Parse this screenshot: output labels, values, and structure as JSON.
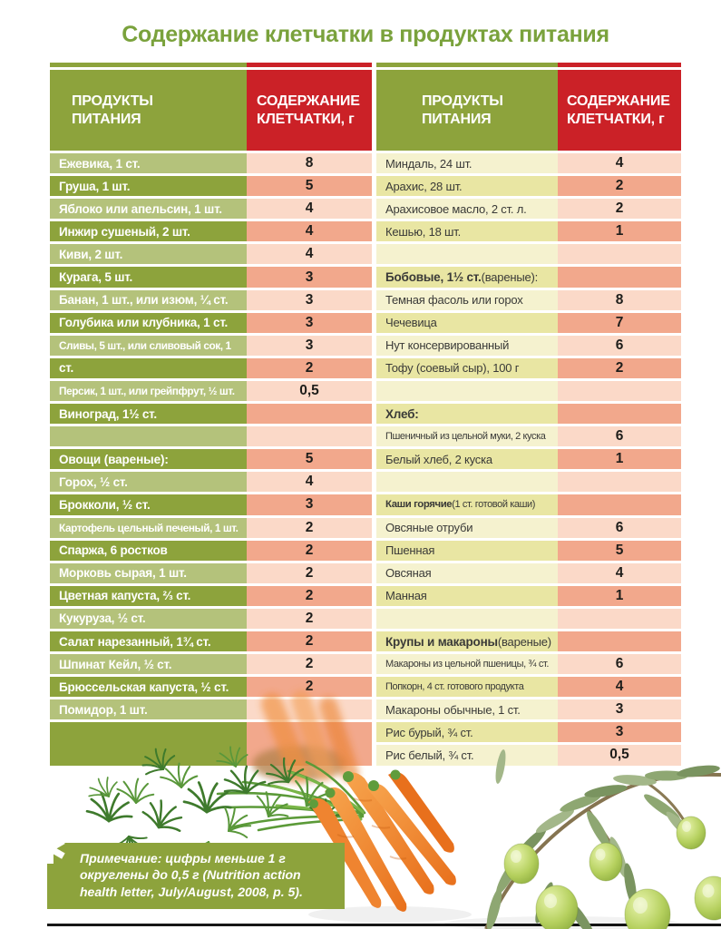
{
  "title": "Содержание клетчатки в продуктах питания",
  "colors": {
    "green_dark": "#8da33c",
    "green_light": "#b4c27b",
    "red": "#cb2127",
    "pink_light": "#fbd9c8",
    "pink_dark": "#f2a88c",
    "cream": "#f5f2cf",
    "yellow": "#e9e6a3",
    "title_green": "#7aa23c"
  },
  "table": {
    "header": {
      "products": "ПРОДУКТЫ ПИТАНИЯ",
      "content": "СОДЕРЖАНИЕ КЛЕТЧАТКИ, г"
    },
    "left": {
      "rows": [
        {
          "label": "Ежевика, 1 ст.",
          "value": "8"
        },
        {
          "label": "Груша, 1 шт.",
          "value": "5"
        },
        {
          "label": "Яблоко или апельсин, 1 шт.",
          "value": "4"
        },
        {
          "label": "Инжир сушеный, 2 шт.",
          "value": "4"
        },
        {
          "label": "Киви, 2 шт.",
          "value": "4"
        },
        {
          "label": "Курага, 5 шт.",
          "value": "3"
        },
        {
          "label": "Банан, 1 шт., или изюм, ¼ ст.",
          "value": "3"
        },
        {
          "label": "Голубика или клубника, 1 ст.",
          "value": "3"
        },
        {
          "label": "Сливы, 5 шт., или сливовый сок, 1",
          "value": "3"
        },
        {
          "label": "ст.",
          "value": "2"
        },
        {
          "label": "Персик, 1 шт., или грейпфрут, ½ шт.",
          "value": "0,5"
        },
        {
          "label": "Виноград, 1½ ст.",
          "value": ""
        },
        {
          "label": "",
          "value": ""
        },
        {
          "label": "Овощи (вареные):",
          "value": "5",
          "section": true
        },
        {
          "label": "Горох, ½ ст.",
          "value": "4"
        },
        {
          "label": "Брокколи, ½ ст.",
          "value": "3"
        },
        {
          "label": "Картофель цельный печеный, 1 шт.",
          "value": "2"
        },
        {
          "label": "Спаржа, 6 ростков",
          "value": "2"
        },
        {
          "label": "Морковь сырая, 1 шт.",
          "value": "2"
        },
        {
          "label": "Цветная капуста, ⅔ ст.",
          "value": "2"
        },
        {
          "label": "Кукуруза, ½ ст.",
          "value": "2"
        },
        {
          "label": "Салат нарезанный, 1¾ ст.",
          "value": "2"
        },
        {
          "label": "Шпинат Кейл, ½ ст.",
          "value": "2"
        },
        {
          "label": "Брюссельская капуста, ½ ст.",
          "value": "2"
        },
        {
          "label": "Помидор, 1 шт.",
          "value": ""
        },
        {
          "label": "",
          "value": "",
          "tall": true
        }
      ]
    },
    "right": {
      "rows": [
        {
          "label": "Миндаль, 24 шт.",
          "value": "4"
        },
        {
          "label": "Арахис, 28 шт.",
          "value": "2"
        },
        {
          "label": "Арахисовое масло, 2 ст. л.",
          "value": "2"
        },
        {
          "label": "Кешью, 18 шт.",
          "value": "1"
        },
        {
          "label": "",
          "value": ""
        },
        {
          "bold": "Бобовые, 1½ ст.",
          "rest": " (вареные):",
          "value": ""
        },
        {
          "label": "Темная фасоль или горох",
          "value": "8"
        },
        {
          "label": "Чечевица",
          "value": "7"
        },
        {
          "label": "Нут консервированный",
          "value": "6"
        },
        {
          "label": "Тофу (соевый сыр), 100 г",
          "value": "2"
        },
        {
          "label": "",
          "value": ""
        },
        {
          "bold": "Хлеб:",
          "rest": "",
          "value": ""
        },
        {
          "label": "Пшеничный из цельной муки, 2 куска",
          "value": "6"
        },
        {
          "label": "Белый хлеб, 2 куска",
          "value": "1"
        },
        {
          "label": "",
          "value": ""
        },
        {
          "bold": "Каши горячие",
          "rest": " (1 ст. готовой каши)",
          "value": ""
        },
        {
          "label": "Овсяные отруби",
          "value": "6"
        },
        {
          "label": "Пшенная",
          "value": "5"
        },
        {
          "label": "Овсяная",
          "value": "4"
        },
        {
          "label": "Манная",
          "value": "1"
        },
        {
          "label": "",
          "value": ""
        },
        {
          "bold": "Крупы и макароны",
          "rest": " (вареные)",
          "value": ""
        },
        {
          "label": "Макароны из цельной пшеницы, ¾ ст.",
          "value": "6"
        },
        {
          "label": "Попкорн, 4 ст. готового продукта",
          "value": "4"
        },
        {
          "label": "Макароны обычные, 1 ст.",
          "value": "3"
        },
        {
          "label": "Рис бурый, ¾ ст.",
          "value": "3"
        },
        {
          "label": "Рис белый, ¾ ст.",
          "value": "0,5"
        }
      ]
    }
  },
  "footnote": {
    "asterisk": "✱",
    "text": "Примечание: цифры меньше 1 г округлены до 0,5 г (Nutrition action health letter, July/August, 2008, p. 5)."
  }
}
